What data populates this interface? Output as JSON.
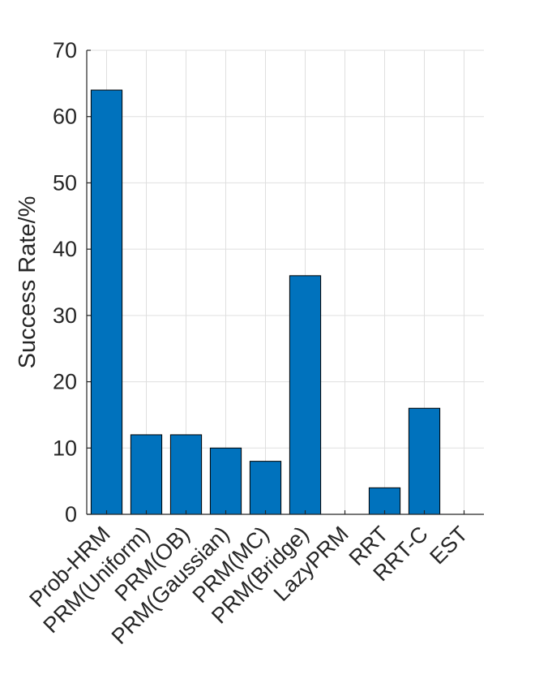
{
  "chart_data": {
    "type": "bar",
    "categories": [
      "Prob-HRM",
      "PRM(Uniform)",
      "PRM(OB)",
      "PRM(Gaussian)",
      "PRM(MC)",
      "PRM(Bridge)",
      "LazyPRM",
      "RRT",
      "RRT-C",
      "EST"
    ],
    "values": [
      64,
      12,
      12,
      10,
      8,
      36,
      0,
      4,
      16,
      0
    ],
    "xlabel": "",
    "ylabel": "Success Rate/%",
    "ylim": [
      0,
      70
    ],
    "yticks": [
      0,
      10,
      20,
      30,
      40,
      50,
      60,
      70
    ],
    "grid": true,
    "bar_color": "#0072BD",
    "bar_edge_color": "#000000",
    "grid_color": "#DFDFDF",
    "axis_color": "#262626"
  }
}
